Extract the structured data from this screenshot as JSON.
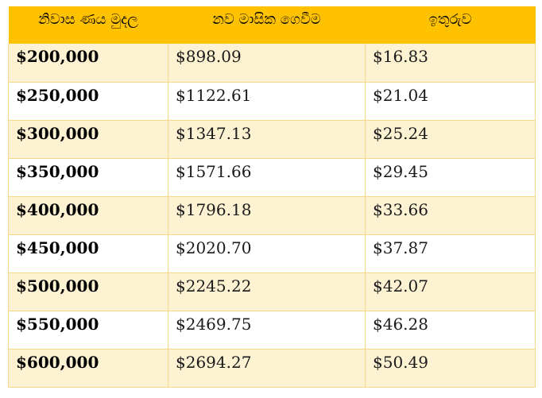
{
  "headers": [
    "නිවාස ණය මුදල",
    "නව මාසික ගෙවීම",
    "ඉතුරුව"
  ],
  "rows": [
    {
      "loan": "$200,000",
      "payment": "$898.09",
      "savings": "$16.83"
    },
    {
      "loan": "$250,000",
      "payment": "$1122.61",
      "savings": "$21.04"
    },
    {
      "loan": "$300,000",
      "payment": "$1347.13",
      "savings": "$25.24"
    },
    {
      "loan": "$350,000",
      "payment": "$1571.66",
      "savings": "$29.45"
    },
    {
      "loan": "$400,000",
      "payment": "$1796.18",
      "savings": "$33.66"
    },
    {
      "loan": "$450,000",
      "payment": "$2020.70",
      "savings": "$37.87"
    },
    {
      "loan": "$500,000",
      "payment": "$2245.22",
      "savings": "$42.07"
    },
    {
      "loan": "$550,000",
      "payment": "$2469.75",
      "savings": "$46.28"
    },
    {
      "loan": "$600,000",
      "payment": "$2694.27",
      "savings": "$50.49"
    }
  ],
  "colors": {
    "header_bg": "#fec200",
    "odd_row_bg": "#fdf2d1",
    "even_row_bg": "#ffffff",
    "border": "#f5d98a"
  }
}
